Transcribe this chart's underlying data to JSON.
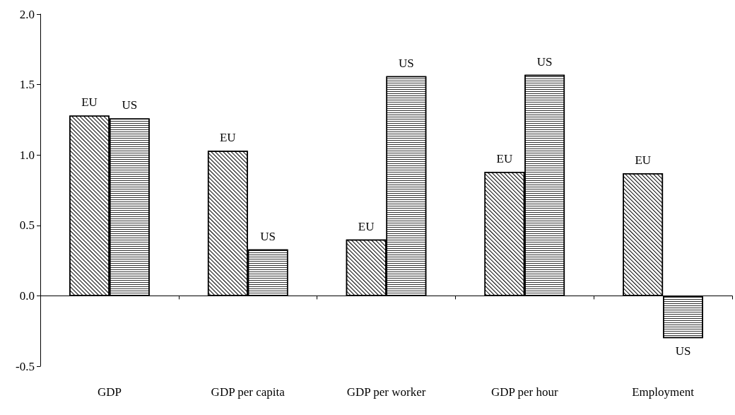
{
  "chart_data": {
    "type": "bar",
    "categories": [
      "GDP",
      "GDP per capita",
      "GDP per worker",
      "GDP per hour",
      "Employment"
    ],
    "series": [
      {
        "name": "EU",
        "color": "#ffffff",
        "values": [
          1.28,
          1.03,
          0.4,
          0.88,
          0.87
        ]
      },
      {
        "name": "US",
        "color": "#ffffff",
        "values": [
          1.26,
          0.33,
          1.56,
          1.57,
          -0.3
        ]
      }
    ],
    "ylim": [
      -0.5,
      2
    ],
    "yticks": [
      {
        "value": -0.5,
        "label": "-0.5"
      },
      {
        "value": 0,
        "label": "0.0"
      },
      {
        "value": 0.5,
        "label": "0.5"
      },
      {
        "value": 1,
        "label": "1.0"
      },
      {
        "value": 1.5,
        "label": "1.5"
      },
      {
        "value": 2,
        "label": "2.0"
      }
    ],
    "legend": false
  }
}
